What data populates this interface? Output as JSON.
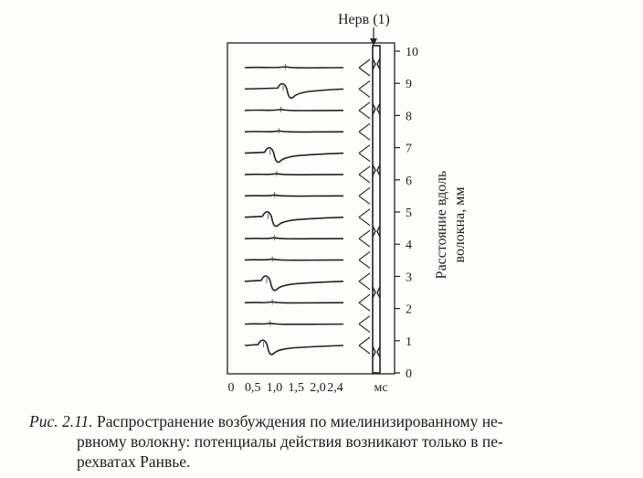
{
  "figure": {
    "nerve_label": "Нерв (1)",
    "y_axis_label_line1": "Расстояние вдоль",
    "y_axis_label_line2": "волокна, мм",
    "y_ticks": [
      "0",
      "1",
      "2",
      "3",
      "4",
      "5",
      "6",
      "7",
      "8",
      "9",
      "10"
    ],
    "x_ticks": [
      "0",
      "0,5",
      "1,0",
      "1,5",
      "2,0",
      "2,4"
    ],
    "x_unit": "мс",
    "traces": [
      {
        "node": true,
        "latency_ms": 0.75
      },
      {
        "node": false,
        "latency_ms": 0.9
      },
      {
        "node": false,
        "latency_ms": 0.95
      },
      {
        "node": true,
        "latency_ms": 0.82
      },
      {
        "node": false,
        "latency_ms": 0.95
      },
      {
        "node": false,
        "latency_ms": 1.0
      },
      {
        "node": true,
        "latency_ms": 0.85
      },
      {
        "node": false,
        "latency_ms": 1.0
      },
      {
        "node": false,
        "latency_ms": 1.05
      },
      {
        "node": true,
        "latency_ms": 0.9
      },
      {
        "node": false,
        "latency_ms": 1.1
      },
      {
        "node": false,
        "latency_ms": 1.15
      },
      {
        "node": true,
        "latency_ms": 1.2
      },
      {
        "node": false,
        "latency_ms": 1.25
      }
    ]
  },
  "caption": {
    "label": "Рис. 2.11.",
    "line1": "Распространение возбуждения по миелинизированному не-",
    "line2": "рвному волокну: потенциалы действия возникают только в пе-",
    "line3": "рехватах Ранвье."
  }
}
